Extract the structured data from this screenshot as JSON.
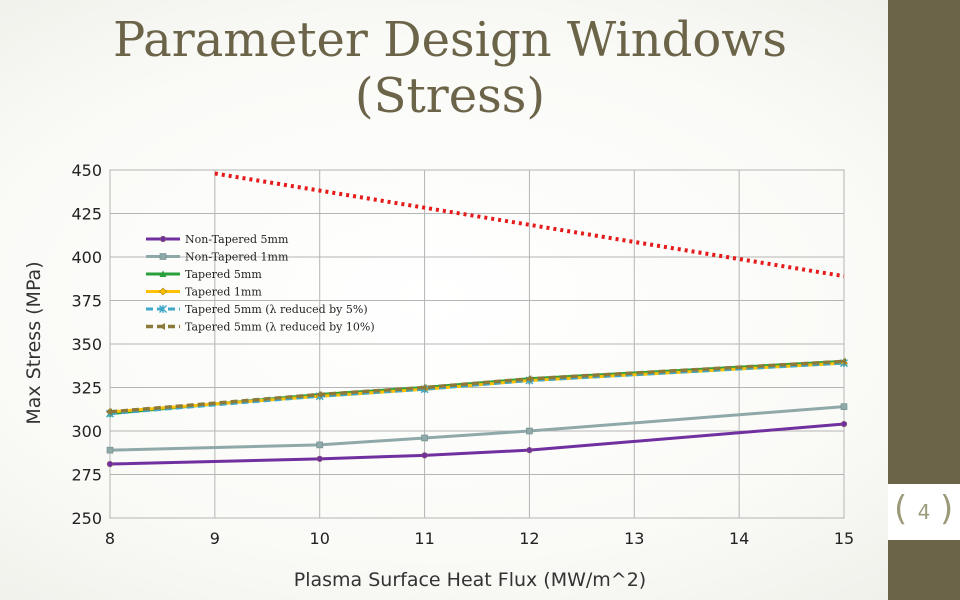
{
  "slide": {
    "title_line1": "Parameter Design Windows",
    "title_line2": "(Stress)",
    "page_number": "4",
    "colors": {
      "sidebar": "#6b6449",
      "title": "#6b6449",
      "page_number": "#9c9a7a"
    }
  },
  "chart_data": {
    "type": "line",
    "xlabel": "Plasma Surface Heat Flux (MW/m^2)",
    "ylabel": "Max Stress (MPa)",
    "xlim": [
      8,
      15
    ],
    "ylim": [
      250,
      450
    ],
    "xticks": [
      8,
      9,
      10,
      11,
      12,
      13,
      14,
      15
    ],
    "yticks": [
      250,
      275,
      300,
      325,
      350,
      375,
      400,
      425,
      450
    ],
    "grid": true,
    "legend_position": "upper-left",
    "series": [
      {
        "name": "Non-Tapered 5mm",
        "color": "#7030a0",
        "marker": "circle",
        "dash": "solid",
        "x": [
          8,
          10,
          11,
          12,
          15
        ],
        "y": [
          281,
          284,
          286,
          289,
          304
        ]
      },
      {
        "name": "Non-Tapered 1mm",
        "color": "#8fa8a8",
        "marker": "square",
        "dash": "solid",
        "x": [
          8,
          10,
          11,
          12,
          15
        ],
        "y": [
          289,
          292,
          296,
          300,
          314
        ]
      },
      {
        "name": "Tapered 5mm",
        "color": "#2aa03a",
        "marker": "triangle",
        "dash": "solid",
        "x": [
          8,
          10,
          11,
          12,
          15
        ],
        "y": [
          310,
          321,
          325,
          330,
          340
        ]
      },
      {
        "name": "Tapered 1mm",
        "color": "#ffc000",
        "marker": "diamond",
        "dash": "solid",
        "x": [
          8,
          10,
          11,
          12,
          15
        ],
        "y": [
          311,
          320,
          324,
          329,
          339
        ]
      },
      {
        "name": "Tapered 5mm  (λ reduced by 5%)",
        "color": "#40a8c8",
        "marker": "star",
        "dash": "dashed",
        "x": [
          8,
          10,
          11,
          12,
          15
        ],
        "y": [
          310,
          320,
          324,
          329,
          339
        ]
      },
      {
        "name": "Tapered 5mm  (λ reduced by 10%)",
        "color": "#8c7a3a",
        "marker": "arrow",
        "dash": "dashed",
        "x": [
          8,
          10,
          11,
          12,
          15
        ],
        "y": [
          311,
          321,
          325,
          330,
          340
        ]
      },
      {
        "name": "",
        "color": "#e51b1b",
        "marker": "none",
        "dash": "dotted",
        "x": [
          9,
          15
        ],
        "y": [
          448,
          389
        ]
      }
    ]
  }
}
